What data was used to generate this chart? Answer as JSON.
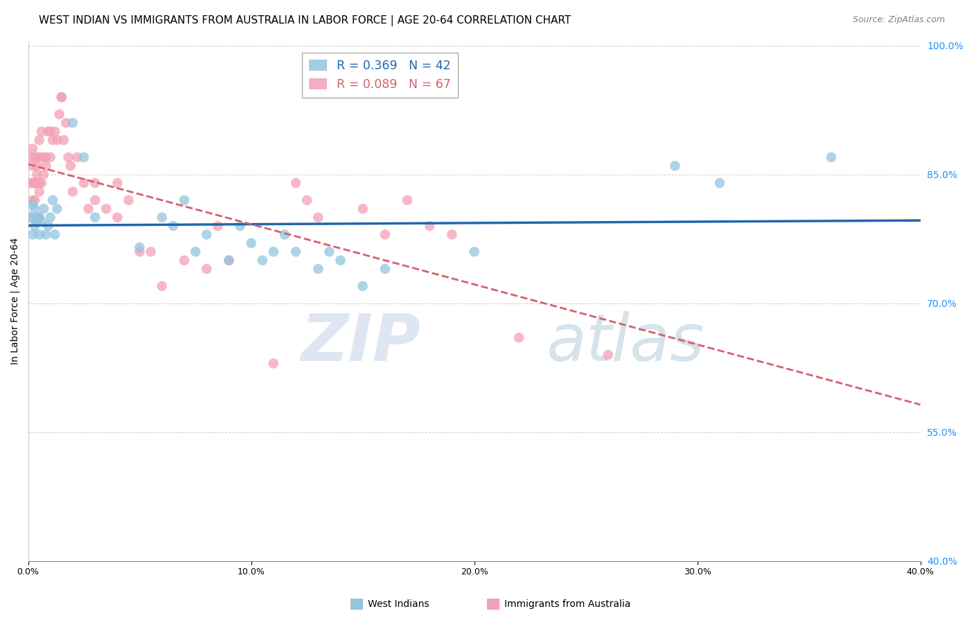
{
  "title": "WEST INDIAN VS IMMIGRANTS FROM AUSTRALIA IN LABOR FORCE | AGE 20-64 CORRELATION CHART",
  "source": "Source: ZipAtlas.com",
  "ylabel": "In Labor Force | Age 20-64",
  "x_ticklabels": [
    "0.0%",
    "10.0%",
    "20.0%",
    "30.0%",
    "40.0%"
  ],
  "y_ticklabels_right": [
    "100.0%",
    "85.0%",
    "70.0%",
    "55.0%",
    "40.0%"
  ],
  "xlim": [
    0.0,
    0.4
  ],
  "ylim": [
    0.4,
    1.005
  ],
  "x_ticks": [
    0.0,
    0.1,
    0.2,
    0.3,
    0.4
  ],
  "y_ticks_right": [
    1.0,
    0.85,
    0.7,
    0.55,
    0.4
  ],
  "blue_color": "#92c5de",
  "pink_color": "#f4a0b5",
  "blue_line_color": "#2166ac",
  "pink_line_color": "#d6606d",
  "background_color": "#ffffff",
  "grid_color": "#cccccc",
  "title_fontsize": 11,
  "source_fontsize": 9,
  "axis_label_fontsize": 10,
  "tick_fontsize": 9,
  "blue_R": "0.369",
  "blue_N": "42",
  "pink_R": "0.089",
  "pink_N": "67",
  "blue_scatter_x": [
    0.001,
    0.002,
    0.002,
    0.003,
    0.003,
    0.004,
    0.004,
    0.005,
    0.005,
    0.006,
    0.007,
    0.008,
    0.009,
    0.01,
    0.011,
    0.012,
    0.013,
    0.02,
    0.025,
    0.03,
    0.05,
    0.06,
    0.065,
    0.07,
    0.075,
    0.08,
    0.09,
    0.095,
    0.1,
    0.105,
    0.11,
    0.115,
    0.12,
    0.13,
    0.135,
    0.14,
    0.15,
    0.16,
    0.2,
    0.29,
    0.31,
    0.36
  ],
  "blue_scatter_y": [
    0.8,
    0.78,
    0.815,
    0.79,
    0.81,
    0.8,
    0.795,
    0.78,
    0.8,
    0.795,
    0.81,
    0.78,
    0.79,
    0.8,
    0.82,
    0.78,
    0.81,
    0.91,
    0.87,
    0.8,
    0.765,
    0.8,
    0.79,
    0.82,
    0.76,
    0.78,
    0.75,
    0.79,
    0.77,
    0.75,
    0.76,
    0.78,
    0.76,
    0.74,
    0.76,
    0.75,
    0.72,
    0.74,
    0.76,
    0.86,
    0.84,
    0.87
  ],
  "pink_scatter_x": [
    0.001,
    0.001,
    0.001,
    0.002,
    0.002,
    0.002,
    0.002,
    0.003,
    0.003,
    0.003,
    0.003,
    0.004,
    0.004,
    0.004,
    0.004,
    0.005,
    0.005,
    0.005,
    0.005,
    0.005,
    0.006,
    0.006,
    0.007,
    0.007,
    0.008,
    0.008,
    0.009,
    0.01,
    0.01,
    0.011,
    0.012,
    0.013,
    0.014,
    0.015,
    0.015,
    0.016,
    0.017,
    0.018,
    0.019,
    0.02,
    0.022,
    0.025,
    0.027,
    0.03,
    0.03,
    0.035,
    0.04,
    0.04,
    0.045,
    0.05,
    0.055,
    0.06,
    0.07,
    0.08,
    0.085,
    0.09,
    0.11,
    0.12,
    0.125,
    0.13,
    0.15,
    0.16,
    0.17,
    0.18,
    0.19,
    0.22,
    0.26
  ],
  "pink_scatter_y": [
    0.8,
    0.84,
    0.87,
    0.82,
    0.86,
    0.88,
    0.84,
    0.84,
    0.87,
    0.84,
    0.82,
    0.85,
    0.87,
    0.86,
    0.84,
    0.87,
    0.89,
    0.83,
    0.8,
    0.84,
    0.9,
    0.84,
    0.87,
    0.85,
    0.86,
    0.87,
    0.9,
    0.9,
    0.87,
    0.89,
    0.9,
    0.89,
    0.92,
    0.94,
    0.94,
    0.89,
    0.91,
    0.87,
    0.86,
    0.83,
    0.87,
    0.84,
    0.81,
    0.84,
    0.82,
    0.81,
    0.84,
    0.8,
    0.82,
    0.76,
    0.76,
    0.72,
    0.75,
    0.74,
    0.79,
    0.75,
    0.63,
    0.84,
    0.82,
    0.8,
    0.81,
    0.78,
    0.82,
    0.79,
    0.78,
    0.66,
    0.64
  ]
}
